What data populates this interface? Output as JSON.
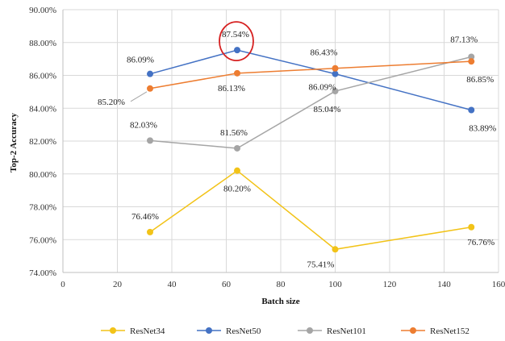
{
  "chart_data": {
    "type": "line",
    "title": "",
    "xlabel": "Batch size",
    "ylabel": "Top-2 Accuracy",
    "xlim": [
      0,
      160
    ],
    "ylim": [
      74,
      90
    ],
    "xticks": [
      0,
      20,
      40,
      60,
      80,
      100,
      120,
      140,
      160
    ],
    "yticks": [
      74,
      76,
      78,
      80,
      82,
      84,
      86,
      88,
      90
    ],
    "ytick_labels": [
      "74.00%",
      "76.00%",
      "78.00%",
      "80.00%",
      "82.00%",
      "84.00%",
      "86.00%",
      "88.00%",
      "90.00%"
    ],
    "xtick_labels": [
      "0",
      "20",
      "40",
      "60",
      "80",
      "100",
      "120",
      "140",
      "160"
    ],
    "grid": true,
    "legend_position": "bottom",
    "series": [
      {
        "name": "ResNet34",
        "color": "#f2c318",
        "x": [
          32,
          64,
          100,
          150
        ],
        "values": [
          76.46,
          80.2,
          75.41,
          76.76
        ],
        "labels": [
          "76.46%",
          "80.20%",
          "75.41%",
          "76.76%"
        ]
      },
      {
        "name": "ResNet50",
        "color": "#4472c4",
        "x": [
          32,
          64,
          100,
          150
        ],
        "values": [
          86.09,
          87.54,
          86.09,
          83.89
        ],
        "labels": [
          "86.09%",
          "87.54%",
          "86.09%",
          "83.89%"
        ]
      },
      {
        "name": "ResNet101",
        "color": "#a5a5a5",
        "x": [
          32,
          64,
          100,
          150
        ],
        "values": [
          82.03,
          81.56,
          85.04,
          87.13
        ],
        "labels": [
          "82.03%",
          "81.56%",
          "85.04%",
          "87.13%"
        ]
      },
      {
        "name": "ResNet152",
        "color": "#ed7d31",
        "x": [
          32,
          64,
          100,
          150
        ],
        "values": [
          85.2,
          86.13,
          86.43,
          86.85
        ],
        "labels": [
          "85.20%",
          "86.13%",
          "86.43%",
          "86.85%"
        ]
      }
    ],
    "highlight": {
      "series": "ResNet50",
      "x": 64,
      "color": "#d62020"
    }
  }
}
